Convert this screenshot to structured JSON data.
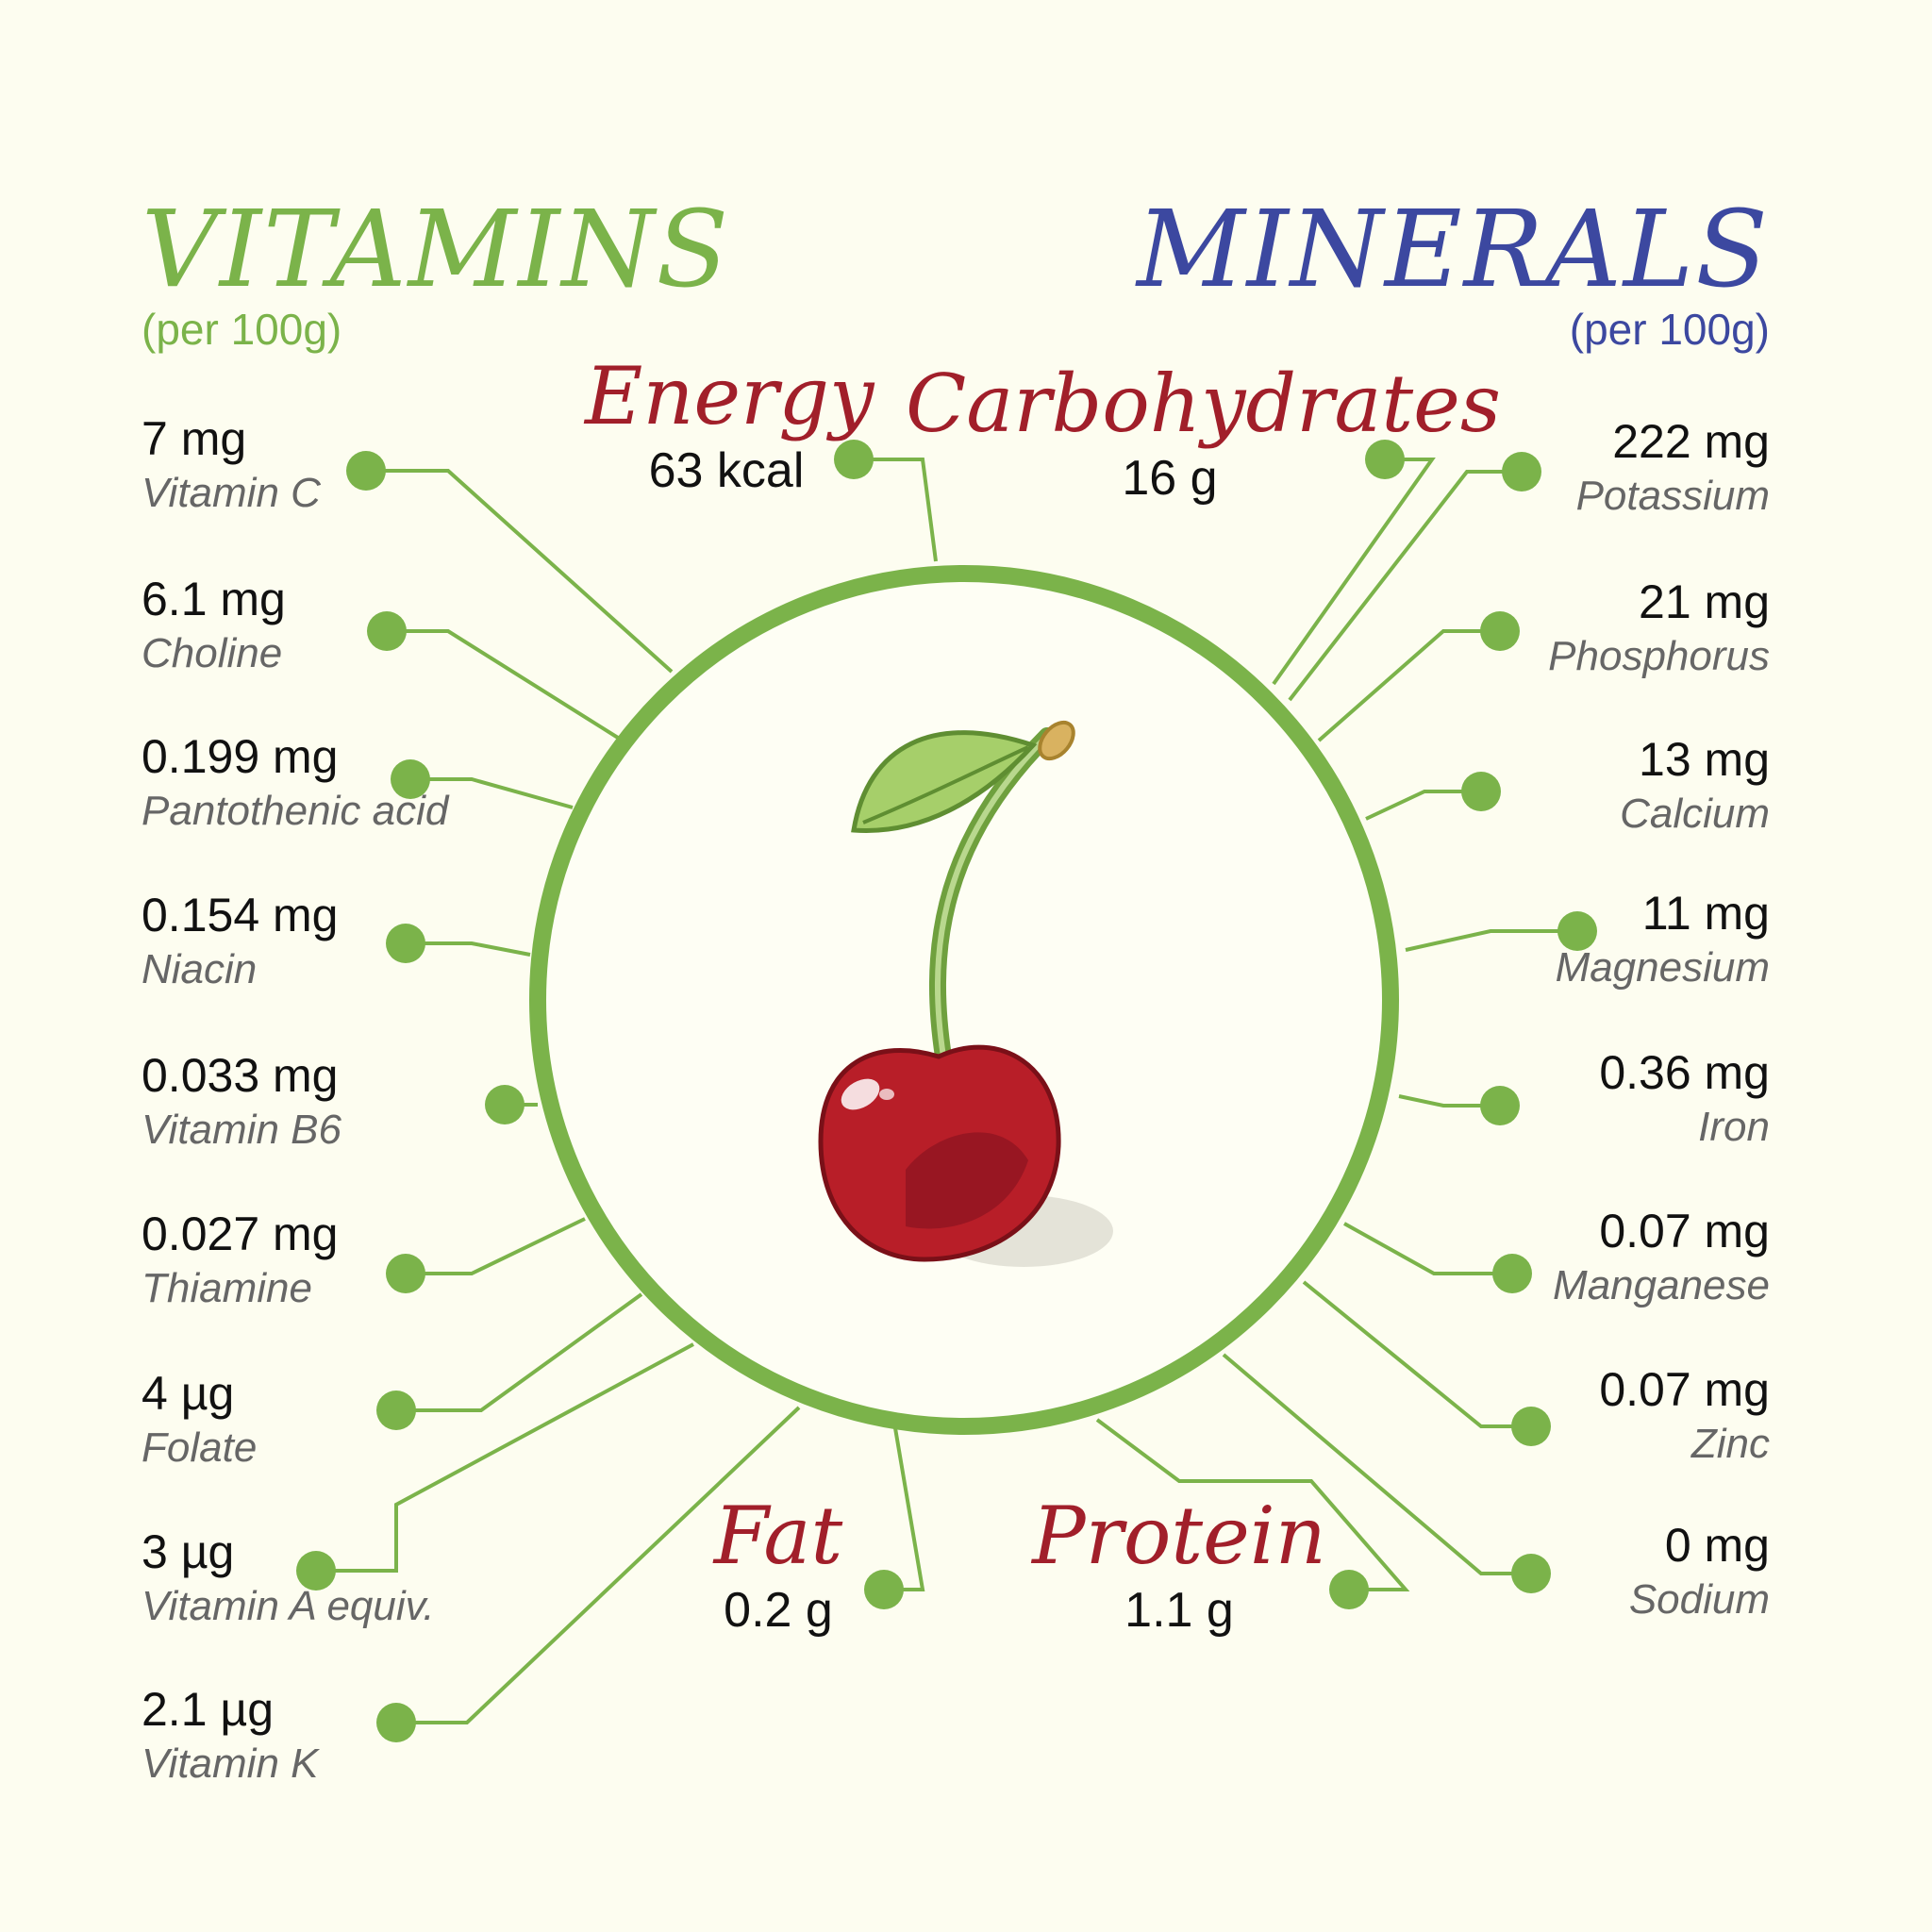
{
  "vitamins": {
    "title": "VITAMINS",
    "subtitle": "(per 100g)",
    "items": [
      {
        "value": "7 mg",
        "name": "Vitamin C"
      },
      {
        "value": "6.1 mg",
        "name": "Choline"
      },
      {
        "value": "0.199 mg",
        "name": "Pantothenic acid"
      },
      {
        "value": "0.154 mg",
        "name": "Niacin"
      },
      {
        "value": "0.033 mg",
        "name": "Vitamin B6"
      },
      {
        "value": "0.027 mg",
        "name": "Thiamine"
      },
      {
        "value": "4 µg",
        "name": "Folate"
      },
      {
        "value": "3 µg",
        "name": "Vitamin A equiv."
      },
      {
        "value": "2.1 µg",
        "name": "Vitamin K"
      }
    ]
  },
  "minerals": {
    "title": "MINERALS",
    "subtitle": "(per 100g)",
    "items": [
      {
        "value": "222 mg",
        "name": "Potassium"
      },
      {
        "value": "21 mg",
        "name": "Phosphorus"
      },
      {
        "value": "13 mg",
        "name": "Calcium"
      },
      {
        "value": "11 mg",
        "name": "Magnesium"
      },
      {
        "value": "0.36 mg",
        "name": "Iron"
      },
      {
        "value": "0.07 mg",
        "name": "Manganese"
      },
      {
        "value": "0.07 mg",
        "name": "Zinc"
      },
      {
        "value": "0 mg",
        "name": "Sodium"
      }
    ]
  },
  "macros": {
    "energy": {
      "label": "Energy",
      "value": "63 kcal"
    },
    "carbohydrates": {
      "label": "Carbohydrates",
      "value": "16 g"
    },
    "fat": {
      "label": "Fat",
      "value": "0.2 g"
    },
    "protein": {
      "label": "Protein",
      "value": "1.1 g"
    }
  },
  "colors": {
    "background": "#fdfdf0",
    "green": "#7bb34a",
    "blue": "#3c48a0",
    "red": "#a11f2a",
    "cherry": "#b81e28"
  }
}
